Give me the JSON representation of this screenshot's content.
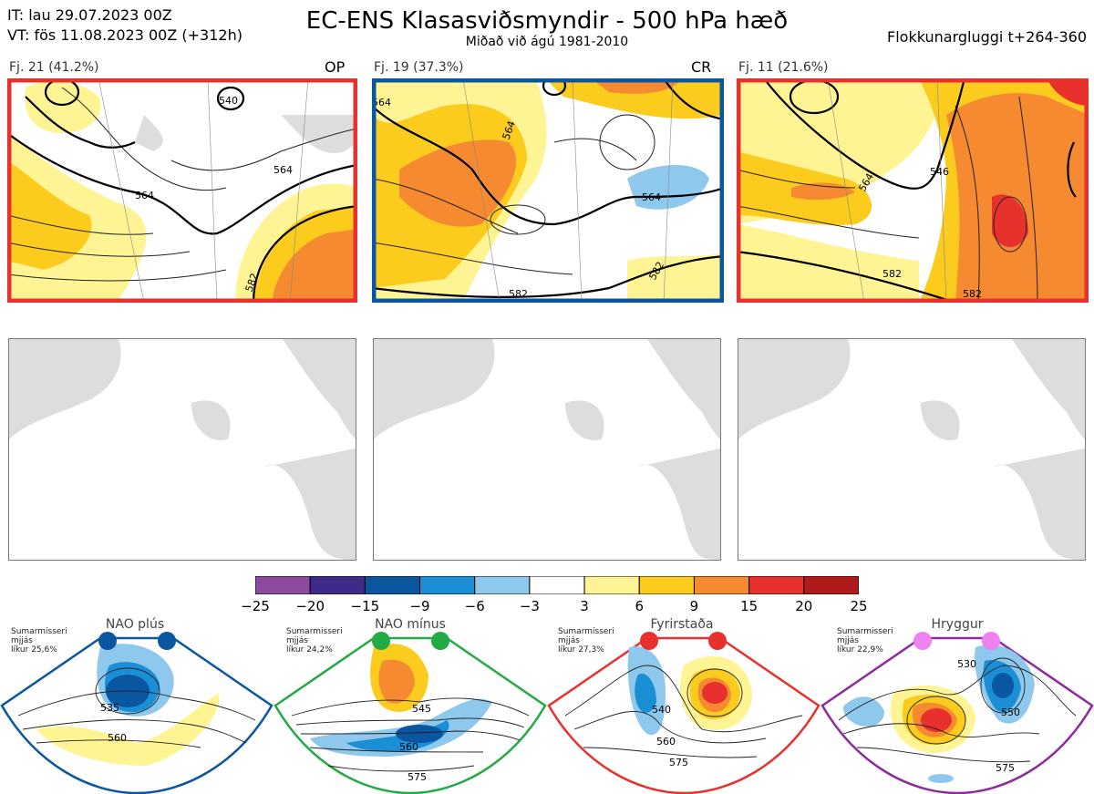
{
  "header": {
    "it_line": "IT: lau 29.07.2023 00Z",
    "vt_line": "VT: fös 11.08.2023 00Z  (+312h)",
    "title": "EC-ENS Klasasviðsmyndir - 500 hPa hæð",
    "subtitle": "Miðað við ágú 1981-2010",
    "window": "Flokkunargluggi t+264-360"
  },
  "clusters": [
    {
      "label": "Fj. 21 (41.2%)",
      "tag": "OP",
      "frame_color": "#e8302c",
      "contours": [
        "564",
        "564",
        "540",
        "582"
      ]
    },
    {
      "label": "Fj. 19 (37.3%)",
      "tag": "CR",
      "frame_color": "#0a56a0",
      "contours": [
        "564",
        "564",
        "564",
        "582",
        "582"
      ]
    },
    {
      "label": "Fj. 11 (21.6%)",
      "tag": "",
      "frame_color": "#e8302c",
      "contours": [
        "564",
        "546",
        "582",
        "582"
      ]
    }
  ],
  "chart_data": {
    "type": "heatmap",
    "title": "EC-ENS Klasasviðsmyndir - 500 hPa hæð",
    "colorbar": {
      "ticks": [
        "−25",
        "−20",
        "−15",
        "−9",
        "−6",
        "−3",
        "3",
        "6",
        "9",
        "15",
        "20",
        "25"
      ],
      "colors": [
        "#8e4a9e",
        "#3f2a8a",
        "#0a56a0",
        "#1a8fd6",
        "#8ec8ec",
        "#ffffff",
        "#fff494",
        "#fbcc1e",
        "#f58a30",
        "#e8302c",
        "#b01a1a"
      ]
    }
  },
  "regimes": [
    {
      "name": "NAO plús",
      "note1": "Sumarmisseri",
      "note2": "mjjás",
      "note3": "líkur 25,6%",
      "dot_color": "#0a56a0",
      "frame_color": "#0a56a0",
      "contours": [
        "535",
        "560"
      ]
    },
    {
      "name": "NAO mínus",
      "note1": "Sumarmisseri",
      "note2": "mjjás",
      "note3": "líkur 24,2%",
      "dot_color": "#22aa44",
      "frame_color": "#22aa44",
      "contours": [
        "545",
        "560",
        "575"
      ]
    },
    {
      "name": "Fyrirstaða",
      "note1": "Sumarmisseri",
      "note2": "mjjás",
      "note3": "líkur 27,3%",
      "dot_color": "#e8302c",
      "frame_color": "#e8302c",
      "contours": [
        "540",
        "560",
        "575"
      ]
    },
    {
      "name": "Hryggur",
      "note1": "Sumarmisseri",
      "note2": "mjjás",
      "note3": "líkur 22,9%",
      "dot_color": "#ee82ee",
      "frame_color": "#8e2a9e",
      "contours": [
        "530",
        "550",
        "575"
      ]
    }
  ]
}
